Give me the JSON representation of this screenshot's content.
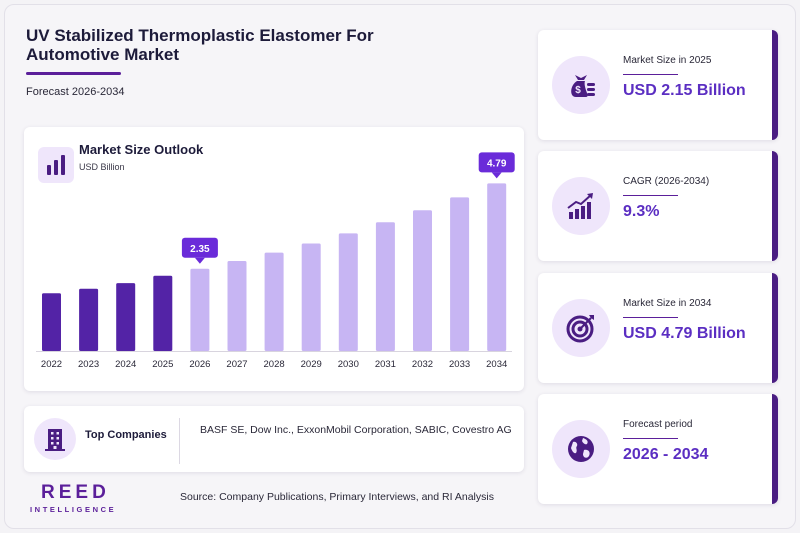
{
  "header": {
    "title": "UV Stabilized Thermoplastic Elastomer For Automotive Market",
    "subtitle": "Forecast 2026-2034"
  },
  "chart_card": {
    "title": "Market Size Outlook",
    "unit": "USD Billion",
    "icon": "bar-chart-icon"
  },
  "chart_data": {
    "type": "bar",
    "title": "Market Size Outlook",
    "ylabel": "USD Billion",
    "categories": [
      "2022",
      "2023",
      "2024",
      "2025",
      "2026",
      "2027",
      "2028",
      "2029",
      "2030",
      "2031",
      "2032",
      "2033",
      "2034"
    ],
    "values": [
      1.65,
      1.78,
      1.94,
      2.15,
      2.35,
      2.57,
      2.81,
      3.07,
      3.36,
      3.68,
      4.02,
      4.39,
      4.79
    ],
    "historical_through": "2025",
    "callouts": [
      {
        "category": "2026",
        "label": "2.35"
      },
      {
        "category": "2034",
        "label": "4.79"
      }
    ],
    "ylim": [
      0,
      5.4
    ],
    "grid": false,
    "colors": {
      "historical": "#5323a6",
      "forecast": "#c7b5f3",
      "callout": "#6a2bd9"
    }
  },
  "companies": {
    "label": "Top Companies",
    "list": "BASF SE, Dow Inc., ExxonMobil Corporation, SABIC, Covestro AG",
    "icon": "building-icon"
  },
  "stats": [
    {
      "label": "Market Size in 2025",
      "value": "USD 2.15 Billion",
      "icon": "money-bag-icon"
    },
    {
      "label": "CAGR (2026-2034)",
      "value": "9.3%",
      "icon": "growth-chart-icon"
    },
    {
      "label": "Market Size in 2034",
      "value": "USD 4.79 Billion",
      "icon": "target-icon"
    },
    {
      "label": "Forecast period",
      "value": "2026 - 2034",
      "icon": "globe-icon"
    }
  ],
  "footer": {
    "source": "Source: Company Publications, Primary Interviews, and RI Analysis",
    "logo_main": "REED",
    "logo_sub": "INTELLIGENCE"
  },
  "colors": {
    "brand": "#5b1f9a",
    "accent": "#5b2ec2",
    "icon_bg": "#efe6fb"
  }
}
